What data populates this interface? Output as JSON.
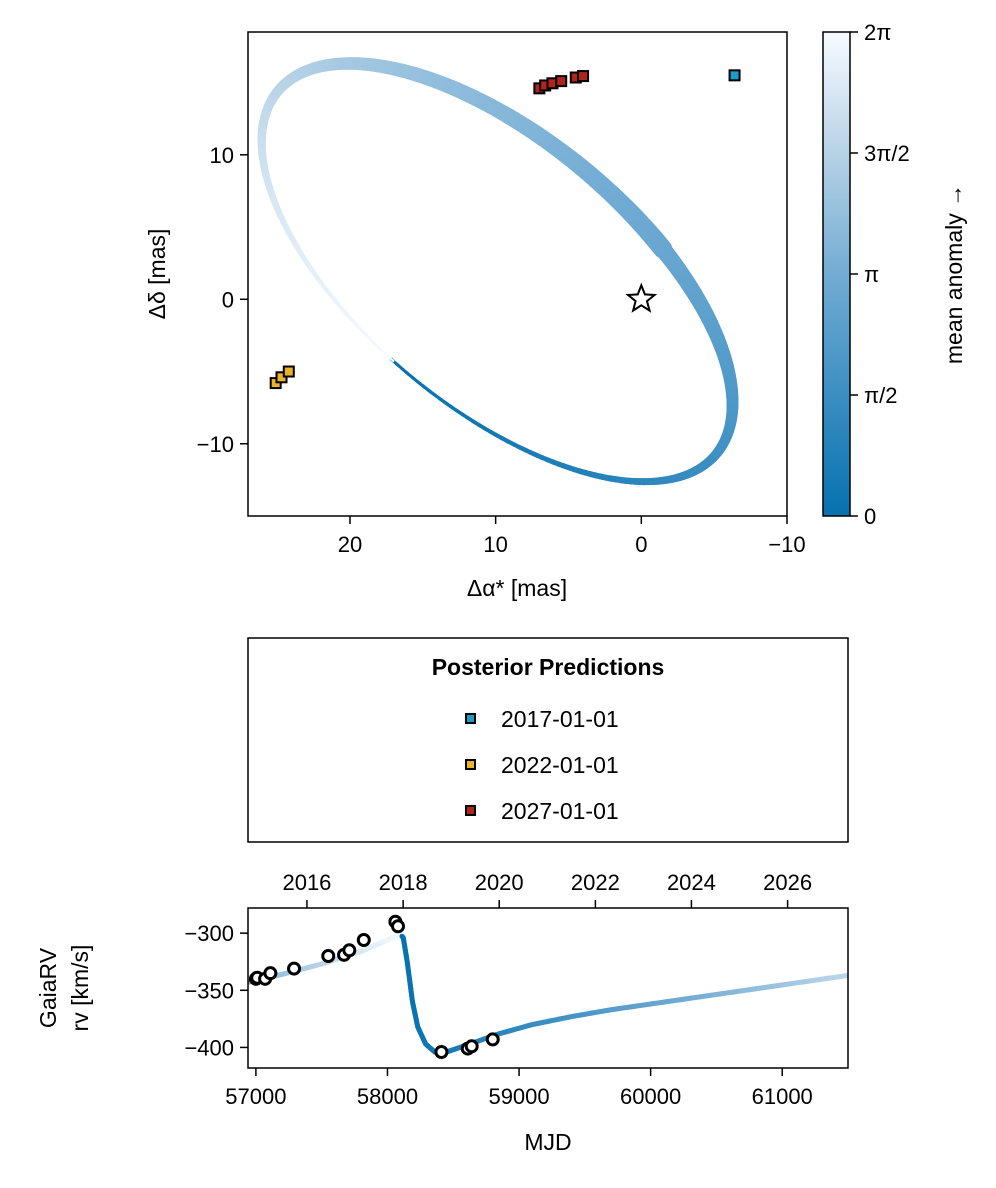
{
  "chart_data": [
    {
      "id": "astrometry",
      "type": "scatter",
      "xlabel": "Δα* [mas]",
      "ylabel": "Δδ [mas]",
      "xlim": [
        27,
        -10
      ],
      "ylim": [
        -15,
        18.5
      ],
      "x_ticks": [
        20,
        10,
        0,
        -10
      ],
      "x_tick_labels": [
        "20",
        "10",
        "0",
        "−10"
      ],
      "y_ticks": [
        10,
        0,
        -10
      ],
      "y_tick_labels": [
        "10",
        "0",
        "−10"
      ],
      "grid": false,
      "orbit": {
        "description_of_track": "orbit track colored by mean anomaly",
        "center": [
          9.9,
          1.85
        ],
        "semi_major": 19.6,
        "semi_minor": 9.3,
        "rotation_deg": 40,
        "periastron_angle_deg": 275,
        "width_start": 3,
        "width_peak": 17
      },
      "star": {
        "x": 0.0,
        "y": 0.0,
        "marker": "star"
      },
      "series": [
        {
          "name": "2017-01-01",
          "color": "#1a9dc4",
          "x": [
            -6.4
          ],
          "y": [
            15.5
          ]
        },
        {
          "name": "2022-01-01",
          "color": "#e9b32c",
          "x": [
            25.1,
            24.7,
            24.2
          ],
          "y": [
            -5.8,
            -5.4,
            -5.0
          ]
        },
        {
          "name": "2027-01-01",
          "color": "#b2241a",
          "x": [
            7.0,
            6.6,
            6.1,
            5.5,
            4.5,
            4.0
          ],
          "y": [
            14.6,
            14.8,
            14.95,
            15.1,
            15.35,
            15.45
          ]
        }
      ]
    },
    {
      "id": "colorbar",
      "type": "colorbar",
      "label": "mean anomaly →",
      "ticks": [
        "0",
        "π/2",
        "π",
        "3π/2",
        "2π"
      ],
      "colors": [
        "#0571b0",
        "#f7fbff"
      ]
    },
    {
      "id": "legend",
      "type": "legend",
      "title": "Posterior Predictions",
      "entries": [
        {
          "label": "2017-01-01",
          "color": "#1a9dc4"
        },
        {
          "label": "2022-01-01",
          "color": "#e9b32c"
        },
        {
          "label": "2027-01-01",
          "color": "#b2241a"
        }
      ]
    },
    {
      "id": "rv",
      "type": "line",
      "xlabel": "MJD",
      "ylabel_lines": [
        "GaiaRV",
        "rv [km/s]"
      ],
      "xlim": [
        56940,
        61500
      ],
      "ylim": [
        -418,
        -278
      ],
      "x_ticks": [
        57000,
        58000,
        59000,
        60000,
        61000
      ],
      "x_tick_labels": [
        "57000",
        "58000",
        "59000",
        "60000",
        "61000"
      ],
      "y_ticks": [
        -300,
        -350,
        -400
      ],
      "y_tick_labels": [
        "−300",
        "−350",
        "−400"
      ],
      "top_axis": {
        "ticks_mjd": [
          57388,
          58119,
          58849,
          59580,
          60310,
          61041
        ],
        "labels": [
          "2016",
          "2018",
          "2020",
          "2022",
          "2024",
          "2026"
        ]
      },
      "model_curve": {
        "x": [
          56940,
          57200,
          57500,
          57800,
          58000,
          58090,
          58120,
          58150,
          58190,
          58230,
          58290,
          58360,
          58420,
          58500,
          58650,
          58850,
          59100,
          59400,
          59700,
          60000,
          60300,
          60600,
          60900,
          61200,
          61500
        ],
        "y": [
          -343,
          -336,
          -327,
          -316,
          -306,
          -300,
          -304,
          -325,
          -360,
          -382,
          -397,
          -404,
          -405,
          -402,
          -396,
          -388,
          -380,
          -373,
          -367,
          -362,
          -357,
          -352,
          -347,
          -342,
          -337
        ]
      },
      "points": {
        "x": [
          57000,
          57010,
          57070,
          57110,
          57290,
          57550,
          57670,
          57710,
          57820,
          58060,
          58080,
          58410,
          58610,
          58640,
          58800
        ],
        "y": [
          -340,
          -339,
          -340,
          -335,
          -331,
          -320,
          -319,
          -315,
          -306,
          -290,
          -294,
          -404,
          -401,
          -399,
          -393
        ]
      }
    }
  ]
}
